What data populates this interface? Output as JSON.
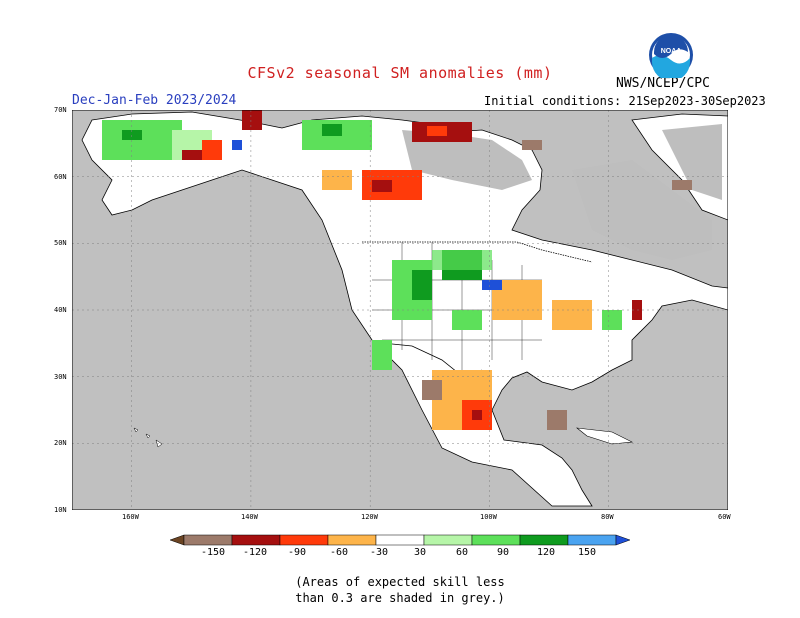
{
  "title": "CFSv2 seasonal SM anomalies (mm)",
  "subtitle": "Dec-Jan-Feb 2023/2024",
  "initial_conditions": "Initial conditions: 21Sep2023-30Sep2023",
  "agency": "NWS/NCEP/CPC",
  "logo_text": "NOAA",
  "note_lines": [
    "(Areas of expected skill less",
    "than 0.3 are shaded in grey.)"
  ],
  "colors": {
    "grey_mask": "#bebebe",
    "ocean": "#c0c0c0",
    "land": "#ffffff",
    "title_red": "#d02020",
    "subtitle_blue": "#2a3fbf"
  },
  "lat_labels": [
    "70N",
    "60N",
    "50N",
    "40N",
    "30N",
    "20N",
    "10N"
  ],
  "lon_labels": [
    "160W",
    "140W",
    "120W",
    "100W",
    "80W",
    "60W"
  ],
  "legend": {
    "ticks": [
      "-150",
      "-120",
      "-90",
      "-60",
      "-30",
      "30",
      "60",
      "90",
      "120",
      "150"
    ],
    "bins": [
      {
        "color": "#6b4423"
      },
      {
        "color": "#9c7a6a"
      },
      {
        "color": "#a50f0f"
      },
      {
        "color": "#ff3a0a"
      },
      {
        "color": "#fdb44a"
      },
      {
        "color": "#ffffff"
      },
      {
        "color": "#b6f5a8"
      },
      {
        "color": "#5de05a"
      },
      {
        "color": "#0f9b1f"
      },
      {
        "color": "#4aa3f0"
      },
      {
        "color": "#1e50d8"
      }
    ]
  }
}
